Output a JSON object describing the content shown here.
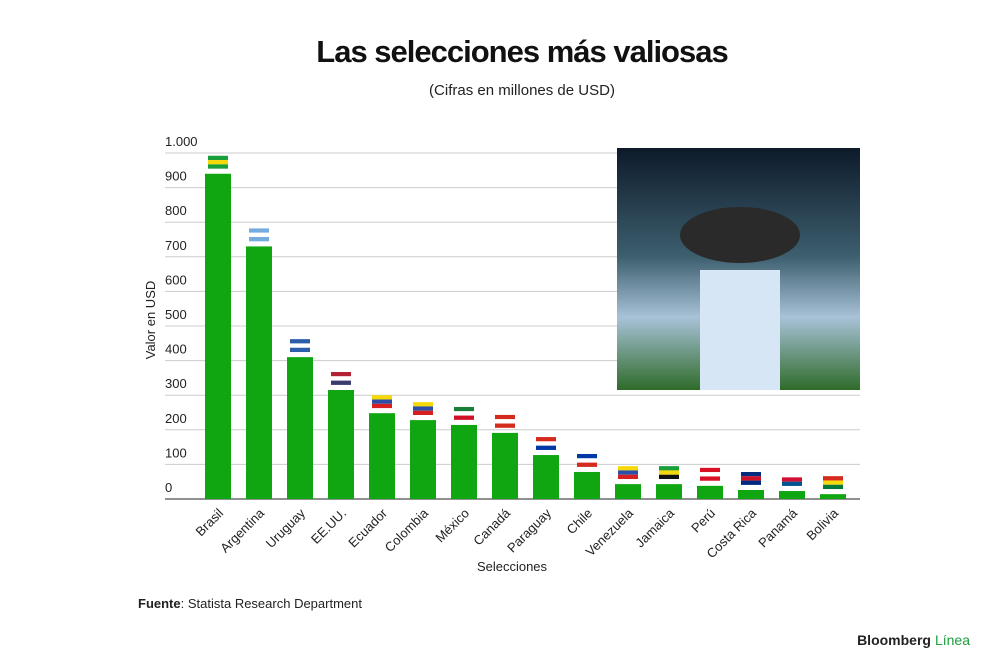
{
  "chart_data": {
    "type": "bar",
    "title": "Las selecciones más valiosas",
    "subtitle": "(Cifras en millones de USD)",
    "y_label": "Valor en USD",
    "x_label": "Selecciones",
    "source_label": "Fuente",
    "source_text": ": Statista Research Department",
    "brand": [
      "Bloomberg",
      "Línea"
    ],
    "categories": [
      "Brasil",
      "Argentina",
      "Uruguay",
      "EE.UU.",
      "Ecuador",
      "Colombia",
      "México",
      "Canadá",
      "Paraguay",
      "Chile",
      "Venezuela",
      "Jamaica",
      "Perú",
      "Costa Rica",
      "Panamá",
      "Bolivia"
    ],
    "values": [
      940,
      730,
      410,
      315,
      248,
      228,
      214,
      191,
      127,
      78,
      43,
      43,
      38,
      26,
      23,
      14
    ],
    "color": "#0fa612",
    "ylim": [
      0,
      1000
    ],
    "yticks": [
      0,
      100,
      200,
      300,
      400,
      500,
      600,
      700,
      800,
      900,
      {
        "value": 1000,
        "label": "1.000"
      }
    ],
    "grid": true
  }
}
